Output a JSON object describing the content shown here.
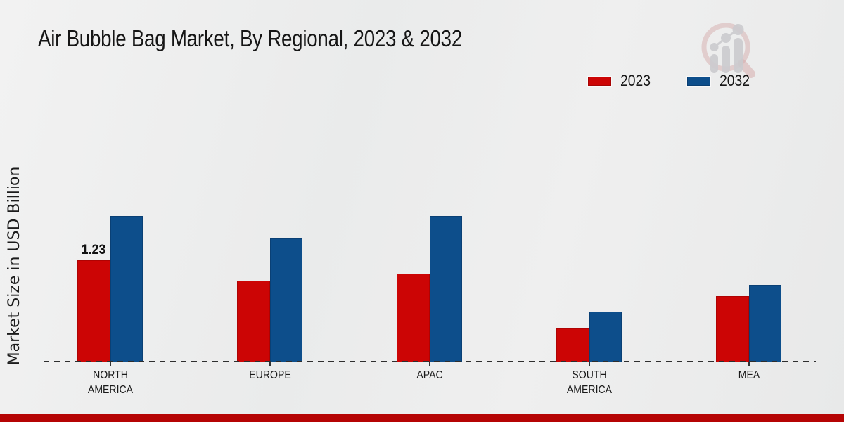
{
  "page": {
    "title": "Air Bubble Bag Market, By Regional, 2023 & 2032"
  },
  "y_axis": {
    "label": "Market Size in USD Billion"
  },
  "legend": {
    "position": "top-right",
    "items": [
      {
        "label": "2023",
        "color": "#cc0505"
      },
      {
        "label": "2032",
        "color": "#0d4e8b"
      }
    ]
  },
  "logo": {
    "name": "magnifier-growth-chart-watermark",
    "ring_color": "#d2a2a2",
    "bars_color": "#c5c5c9"
  },
  "footer": {
    "accent_color": "#b50404"
  },
  "chart_data": {
    "type": "bar",
    "title": "Air Bubble Bag Market, By Regional, 2023 & 2032",
    "xlabel": "",
    "ylabel": "Market Size in USD Billion",
    "categories": [
      "NORTH AMERICA",
      "EUROPE",
      "APAC",
      "SOUTH AMERICA",
      "MEA"
    ],
    "series": [
      {
        "name": "2023",
        "color": "#cc0505",
        "values": [
          1.23,
          0.98,
          1.07,
          0.41,
          0.8
        ]
      },
      {
        "name": "2032",
        "color": "#0d4e8b",
        "values": [
          1.76,
          1.49,
          1.76,
          0.61,
          0.93
        ]
      }
    ],
    "value_labels": [
      {
        "category": "NORTH AMERICA",
        "series": "2023",
        "text": "1.23"
      }
    ],
    "unit": "USD Billion",
    "baseline_style": "dashed",
    "gridlines": false,
    "y_axis_ticks_visible": false,
    "legend_position": "top-right"
  }
}
